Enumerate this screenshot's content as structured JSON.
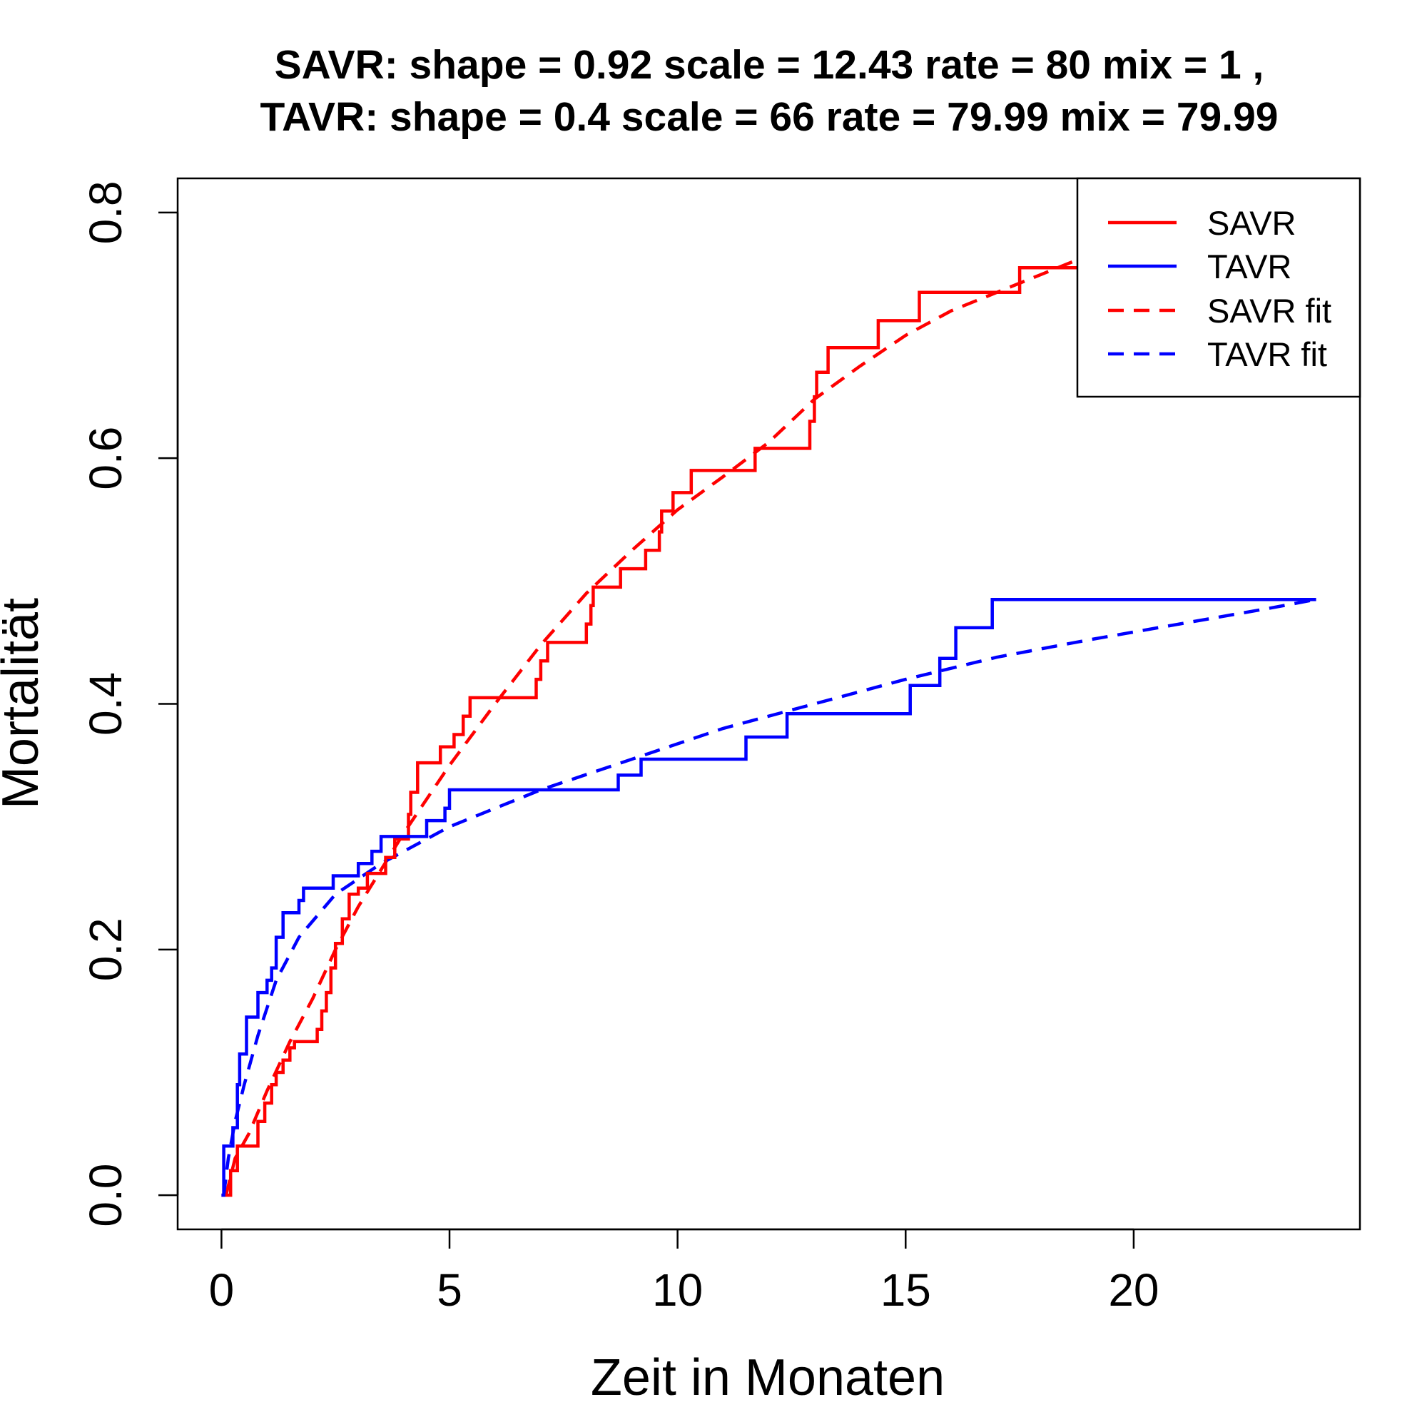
{
  "chart_data": {
    "type": "line",
    "title_lines": [
      "SAVR:  shape =  0.92   scale =  12.43   rate =  80   mix =  1 ,",
      "TAVR:  shape =  0.4   scale =  66   rate =  79.99   mix =  79.99"
    ],
    "xlabel": "Zeit in Monaten",
    "ylabel": "Mortalität",
    "xlim": [
      -0.96,
      24.96
    ],
    "ylim": [
      -0.0278,
      0.8278
    ],
    "x_ticks": [
      0,
      5,
      10,
      15,
      20
    ],
    "y_ticks": [
      0.0,
      0.2,
      0.4,
      0.6,
      0.8
    ],
    "x_tick_labels": [
      "0",
      "5",
      "10",
      "15",
      "20"
    ],
    "y_tick_labels": [
      "0.0",
      "0.2",
      "0.4",
      "0.6",
      "0.8"
    ],
    "grid": false,
    "legend_position": "top-right",
    "colors": {
      "SAVR": "#ff0000",
      "TAVR": "#0000ff"
    },
    "series": [
      {
        "name": "SAVR",
        "style": "step",
        "color": "#ff0000",
        "points": [
          [
            0,
            0
          ],
          [
            0.2,
            0
          ],
          [
            0.2,
            0.02
          ],
          [
            0.35,
            0.02
          ],
          [
            0.35,
            0.04
          ],
          [
            0.8,
            0.04
          ],
          [
            0.8,
            0.06
          ],
          [
            0.95,
            0.06
          ],
          [
            0.95,
            0.075
          ],
          [
            1.1,
            0.075
          ],
          [
            1.1,
            0.09
          ],
          [
            1.2,
            0.09
          ],
          [
            1.2,
            0.1
          ],
          [
            1.35,
            0.1
          ],
          [
            1.35,
            0.11
          ],
          [
            1.5,
            0.11
          ],
          [
            1.5,
            0.12
          ],
          [
            1.6,
            0.12
          ],
          [
            1.6,
            0.125
          ],
          [
            2.1,
            0.125
          ],
          [
            2.1,
            0.135
          ],
          [
            2.2,
            0.135
          ],
          [
            2.2,
            0.15
          ],
          [
            2.3,
            0.15
          ],
          [
            2.3,
            0.165
          ],
          [
            2.4,
            0.165
          ],
          [
            2.4,
            0.185
          ],
          [
            2.5,
            0.185
          ],
          [
            2.5,
            0.205
          ],
          [
            2.65,
            0.205
          ],
          [
            2.65,
            0.225
          ],
          [
            2.8,
            0.225
          ],
          [
            2.8,
            0.245
          ],
          [
            3.0,
            0.245
          ],
          [
            3.0,
            0.25
          ],
          [
            3.2,
            0.25
          ],
          [
            3.2,
            0.262
          ],
          [
            3.6,
            0.262
          ],
          [
            3.6,
            0.275
          ],
          [
            3.8,
            0.275
          ],
          [
            3.8,
            0.29
          ],
          [
            4.1,
            0.29
          ],
          [
            4.1,
            0.31
          ],
          [
            4.15,
            0.31
          ],
          [
            4.15,
            0.328
          ],
          [
            4.3,
            0.328
          ],
          [
            4.3,
            0.352
          ],
          [
            4.8,
            0.352
          ],
          [
            4.8,
            0.365
          ],
          [
            5.1,
            0.365
          ],
          [
            5.1,
            0.375
          ],
          [
            5.3,
            0.375
          ],
          [
            5.3,
            0.39
          ],
          [
            5.45,
            0.39
          ],
          [
            5.45,
            0.405
          ],
          [
            6.9,
            0.405
          ],
          [
            6.9,
            0.42
          ],
          [
            7.0,
            0.42
          ],
          [
            7.0,
            0.435
          ],
          [
            7.15,
            0.435
          ],
          [
            7.15,
            0.45
          ],
          [
            8.0,
            0.45
          ],
          [
            8.0,
            0.465
          ],
          [
            8.1,
            0.465
          ],
          [
            8.1,
            0.48
          ],
          [
            8.15,
            0.48
          ],
          [
            8.15,
            0.495
          ],
          [
            8.75,
            0.495
          ],
          [
            8.75,
            0.51
          ],
          [
            9.3,
            0.51
          ],
          [
            9.3,
            0.525
          ],
          [
            9.6,
            0.525
          ],
          [
            9.6,
            0.54
          ],
          [
            9.65,
            0.54
          ],
          [
            9.65,
            0.557
          ],
          [
            9.9,
            0.557
          ],
          [
            9.9,
            0.572
          ],
          [
            10.3,
            0.572
          ],
          [
            10.3,
            0.59
          ],
          [
            11.7,
            0.59
          ],
          [
            11.7,
            0.608
          ],
          [
            12.9,
            0.608
          ],
          [
            12.9,
            0.63
          ],
          [
            13.0,
            0.63
          ],
          [
            13.0,
            0.65
          ],
          [
            13.05,
            0.65
          ],
          [
            13.05,
            0.67
          ],
          [
            13.3,
            0.67
          ],
          [
            13.3,
            0.69
          ],
          [
            14.4,
            0.69
          ],
          [
            14.4,
            0.712
          ],
          [
            15.3,
            0.712
          ],
          [
            15.3,
            0.735
          ],
          [
            17.5,
            0.735
          ],
          [
            17.5,
            0.755
          ],
          [
            18.8,
            0.755
          ],
          [
            18.8,
            0.765
          ]
        ]
      },
      {
        "name": "TAVR",
        "style": "step",
        "color": "#0000ff",
        "points": [
          [
            0,
            0
          ],
          [
            0.05,
            0
          ],
          [
            0.05,
            0.04
          ],
          [
            0.25,
            0.04
          ],
          [
            0.25,
            0.055
          ],
          [
            0.35,
            0.055
          ],
          [
            0.35,
            0.09
          ],
          [
            0.4,
            0.09
          ],
          [
            0.4,
            0.115
          ],
          [
            0.55,
            0.115
          ],
          [
            0.55,
            0.145
          ],
          [
            0.8,
            0.145
          ],
          [
            0.8,
            0.165
          ],
          [
            1.0,
            0.165
          ],
          [
            1.0,
            0.175
          ],
          [
            1.1,
            0.175
          ],
          [
            1.1,
            0.185
          ],
          [
            1.2,
            0.185
          ],
          [
            1.2,
            0.21
          ],
          [
            1.35,
            0.21
          ],
          [
            1.35,
            0.23
          ],
          [
            1.7,
            0.23
          ],
          [
            1.7,
            0.24
          ],
          [
            1.8,
            0.24
          ],
          [
            1.8,
            0.25
          ],
          [
            2.45,
            0.25
          ],
          [
            2.45,
            0.26
          ],
          [
            3.0,
            0.26
          ],
          [
            3.0,
            0.27
          ],
          [
            3.3,
            0.27
          ],
          [
            3.3,
            0.28
          ],
          [
            3.5,
            0.28
          ],
          [
            3.5,
            0.292
          ],
          [
            4.5,
            0.292
          ],
          [
            4.5,
            0.305
          ],
          [
            4.9,
            0.305
          ],
          [
            4.9,
            0.315
          ],
          [
            5.0,
            0.315
          ],
          [
            5.0,
            0.33
          ],
          [
            8.7,
            0.33
          ],
          [
            8.7,
            0.342
          ],
          [
            9.2,
            0.342
          ],
          [
            9.2,
            0.355
          ],
          [
            11.5,
            0.355
          ],
          [
            11.5,
            0.373
          ],
          [
            12.4,
            0.373
          ],
          [
            12.4,
            0.392
          ],
          [
            15.1,
            0.392
          ],
          [
            15.1,
            0.415
          ],
          [
            15.75,
            0.415
          ],
          [
            15.75,
            0.437
          ],
          [
            16.1,
            0.437
          ],
          [
            16.1,
            0.462
          ],
          [
            16.9,
            0.462
          ],
          [
            16.9,
            0.485
          ],
          [
            24.0,
            0.485
          ]
        ]
      },
      {
        "name": "SAVR fit",
        "style": "dashed",
        "color": "#ff0000",
        "points": [
          [
            0.1,
            0.0
          ],
          [
            0.3,
            0.03
          ],
          [
            0.6,
            0.05
          ],
          [
            1.0,
            0.085
          ],
          [
            1.5,
            0.125
          ],
          [
            2.0,
            0.16
          ],
          [
            2.5,
            0.2
          ],
          [
            3.0,
            0.235
          ],
          [
            3.5,
            0.265
          ],
          [
            4.0,
            0.295
          ],
          [
            5.0,
            0.35
          ],
          [
            6.0,
            0.4
          ],
          [
            7.0,
            0.448
          ],
          [
            8.0,
            0.49
          ],
          [
            9.0,
            0.525
          ],
          [
            10.0,
            0.558
          ],
          [
            11.0,
            0.585
          ],
          [
            12.0,
            0.613
          ],
          [
            13.0,
            0.648
          ],
          [
            14.0,
            0.675
          ],
          [
            15.0,
            0.7
          ],
          [
            16.0,
            0.72
          ],
          [
            17.0,
            0.735
          ],
          [
            18.0,
            0.75
          ],
          [
            19.0,
            0.765
          ]
        ]
      },
      {
        "name": "TAVR fit",
        "style": "dashed",
        "color": "#0000ff",
        "points": [
          [
            0.05,
            0.0
          ],
          [
            0.15,
            0.03
          ],
          [
            0.3,
            0.06
          ],
          [
            0.5,
            0.09
          ],
          [
            0.8,
            0.13
          ],
          [
            1.2,
            0.175
          ],
          [
            1.7,
            0.21
          ],
          [
            2.5,
            0.245
          ],
          [
            3.5,
            0.27
          ],
          [
            5.0,
            0.3
          ],
          [
            7.0,
            0.33
          ],
          [
            9.0,
            0.355
          ],
          [
            11.0,
            0.38
          ],
          [
            13.0,
            0.4
          ],
          [
            15.0,
            0.42
          ],
          [
            17.0,
            0.438
          ],
          [
            19.0,
            0.452
          ],
          [
            21.0,
            0.465
          ],
          [
            23.0,
            0.478
          ],
          [
            24.0,
            0.485
          ]
        ]
      }
    ]
  }
}
